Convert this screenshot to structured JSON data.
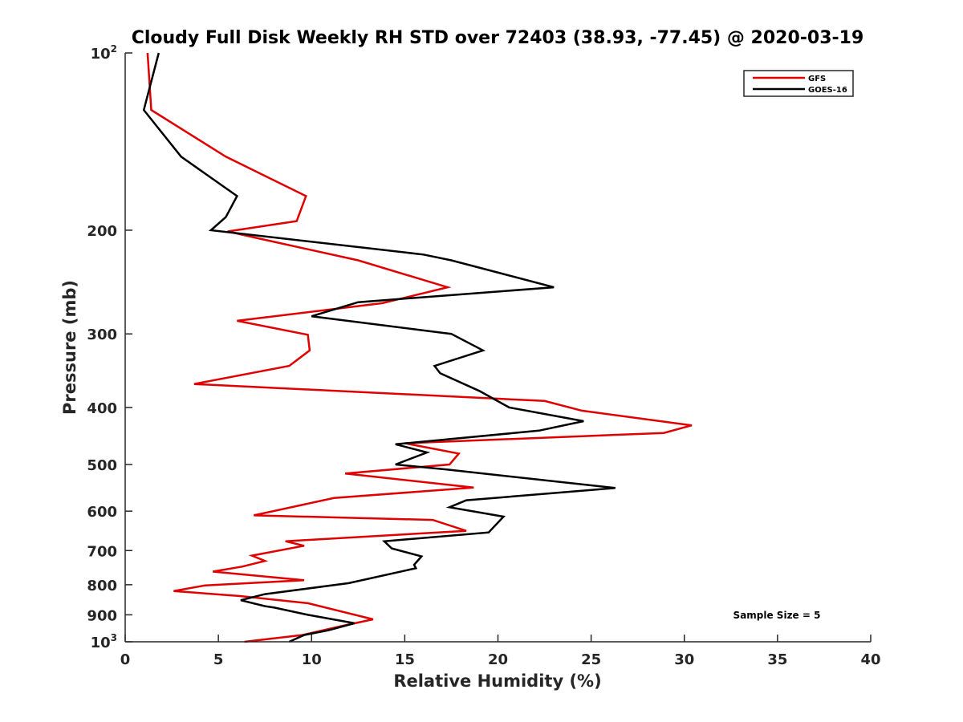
{
  "chart_data": {
    "type": "line",
    "title": "Cloudy Full Disk Weekly RH STD over 72403 (38.93, -77.45) @ 2020-03-19",
    "xlabel": "Relative Humidity (%)",
    "ylabel": "Pressure (mb)",
    "xlim": [
      0,
      40
    ],
    "ylim": [
      100,
      1000
    ],
    "yscale": "log",
    "y_reversed": true,
    "grid": false,
    "legend_position": "top-right",
    "x_ticks": [
      "0",
      "5",
      "10",
      "15",
      "20",
      "25",
      "30",
      "35",
      "40"
    ],
    "y_ticks": [
      {
        "value": 100,
        "base": "10",
        "exp": "2"
      },
      {
        "value": 200,
        "label": "200"
      },
      {
        "value": 300,
        "label": "300"
      },
      {
        "value": 400,
        "label": "400"
      },
      {
        "value": 500,
        "label": "500"
      },
      {
        "value": 600,
        "label": "600"
      },
      {
        "value": 700,
        "label": "700"
      },
      {
        "value": 800,
        "label": "800"
      },
      {
        "value": 900,
        "label": "900"
      },
      {
        "value": 1000,
        "base": "10",
        "exp": "3"
      }
    ],
    "annotation": "Sample Size = 5",
    "series": [
      {
        "name": "GFS",
        "color": "#e00000",
        "points": [
          [
            1.2,
            100
          ],
          [
            1.4,
            125
          ],
          [
            5.4,
            150
          ],
          [
            9.7,
            175
          ],
          [
            9.2,
            193
          ],
          [
            5.5,
            201
          ],
          [
            7.0,
            206
          ],
          [
            12.5,
            225
          ],
          [
            17.3,
            250
          ],
          [
            13.8,
            266
          ],
          [
            6.0,
            285
          ],
          [
            9.8,
            301
          ],
          [
            9.9,
            320
          ],
          [
            8.8,
            340
          ],
          [
            3.7,
            365
          ],
          [
            22.5,
            390
          ],
          [
            24.5,
            405
          ],
          [
            30.4,
            429
          ],
          [
            28.9,
            442
          ],
          [
            15.0,
            460
          ],
          [
            17.9,
            479
          ],
          [
            17.4,
            500
          ],
          [
            11.8,
            518
          ],
          [
            18.7,
            547
          ],
          [
            11.2,
            570
          ],
          [
            6.9,
            610
          ],
          [
            16.5,
            621
          ],
          [
            18.3,
            648
          ],
          [
            8.6,
            675
          ],
          [
            9.6,
            687
          ],
          [
            6.8,
            714
          ],
          [
            7.5,
            729
          ],
          [
            6.3,
            745
          ],
          [
            4.7,
            760
          ],
          [
            9.6,
            786
          ],
          [
            4.3,
            802
          ],
          [
            2.6,
            820
          ],
          [
            6.1,
            836
          ],
          [
            9.8,
            860
          ],
          [
            13.3,
            916
          ],
          [
            11.5,
            942
          ],
          [
            9.5,
            974
          ],
          [
            6.4,
            1000
          ]
        ]
      },
      {
        "name": "GOES-16",
        "color": "#000000",
        "points": [
          [
            1.8,
            100
          ],
          [
            1.0,
            125
          ],
          [
            3.0,
            150
          ],
          [
            6.0,
            175
          ],
          [
            5.4,
            190
          ],
          [
            4.6,
            200
          ],
          [
            16.0,
            220
          ],
          [
            17.5,
            225
          ],
          [
            23.0,
            250
          ],
          [
            12.5,
            265
          ],
          [
            10.0,
            280
          ],
          [
            17.5,
            300
          ],
          [
            19.2,
            320
          ],
          [
            16.6,
            340
          ],
          [
            16.9,
            350
          ],
          [
            19.0,
            375
          ],
          [
            20.6,
            400
          ],
          [
            24.6,
            422
          ],
          [
            22.2,
            438
          ],
          [
            14.5,
            462
          ],
          [
            16.2,
            477
          ],
          [
            14.5,
            500
          ],
          [
            17.3,
            510
          ],
          [
            26.3,
            548
          ],
          [
            18.3,
            575
          ],
          [
            17.4,
            591
          ],
          [
            20.3,
            613
          ],
          [
            19.5,
            652
          ],
          [
            13.9,
            675
          ],
          [
            14.3,
            694
          ],
          [
            15.9,
            716
          ],
          [
            15.5,
            740
          ],
          [
            15.6,
            750
          ],
          [
            12.0,
            795
          ],
          [
            7.5,
            830
          ],
          [
            6.2,
            850
          ],
          [
            7.5,
            870
          ],
          [
            8.0,
            875
          ],
          [
            9.8,
            900
          ],
          [
            12.3,
            930
          ],
          [
            10.9,
            956
          ],
          [
            9.6,
            974
          ],
          [
            8.8,
            1000
          ]
        ]
      }
    ]
  }
}
